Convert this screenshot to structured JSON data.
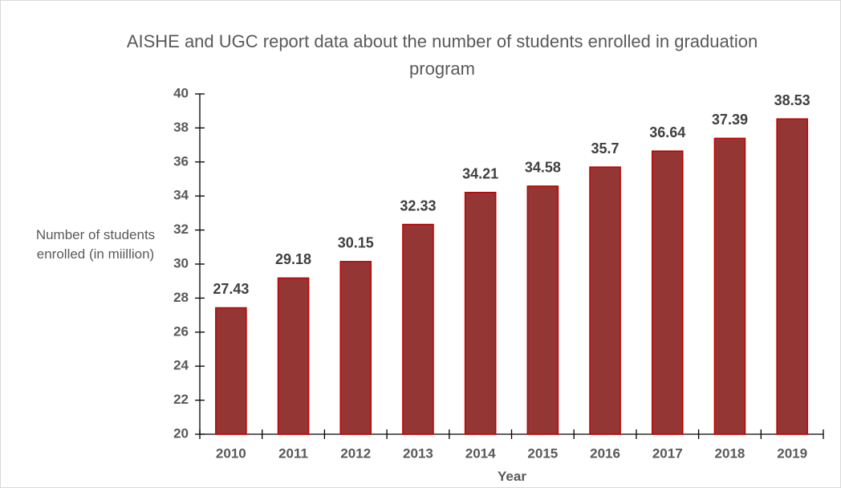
{
  "chart_data": {
    "type": "bar",
    "title": "AISHE and UGC report data about the number of students enrolled in graduation program",
    "y_label": "Number of students enrolled (in miillion)",
    "x_label": "Year",
    "categories": [
      "2010",
      "2011",
      "2012",
      "2013",
      "2014",
      "2015",
      "2016",
      "2017",
      "2018",
      "2019"
    ],
    "values": [
      27.43,
      29.18,
      30.15,
      32.33,
      34.21,
      34.58,
      35.7,
      36.64,
      37.39,
      38.53
    ],
    "color": "#943634",
    "edge_color": "#c00000",
    "ylim": [
      20,
      40
    ],
    "yticks": [
      20,
      22,
      24,
      26,
      28,
      30,
      32,
      34,
      36,
      38,
      40
    ]
  }
}
